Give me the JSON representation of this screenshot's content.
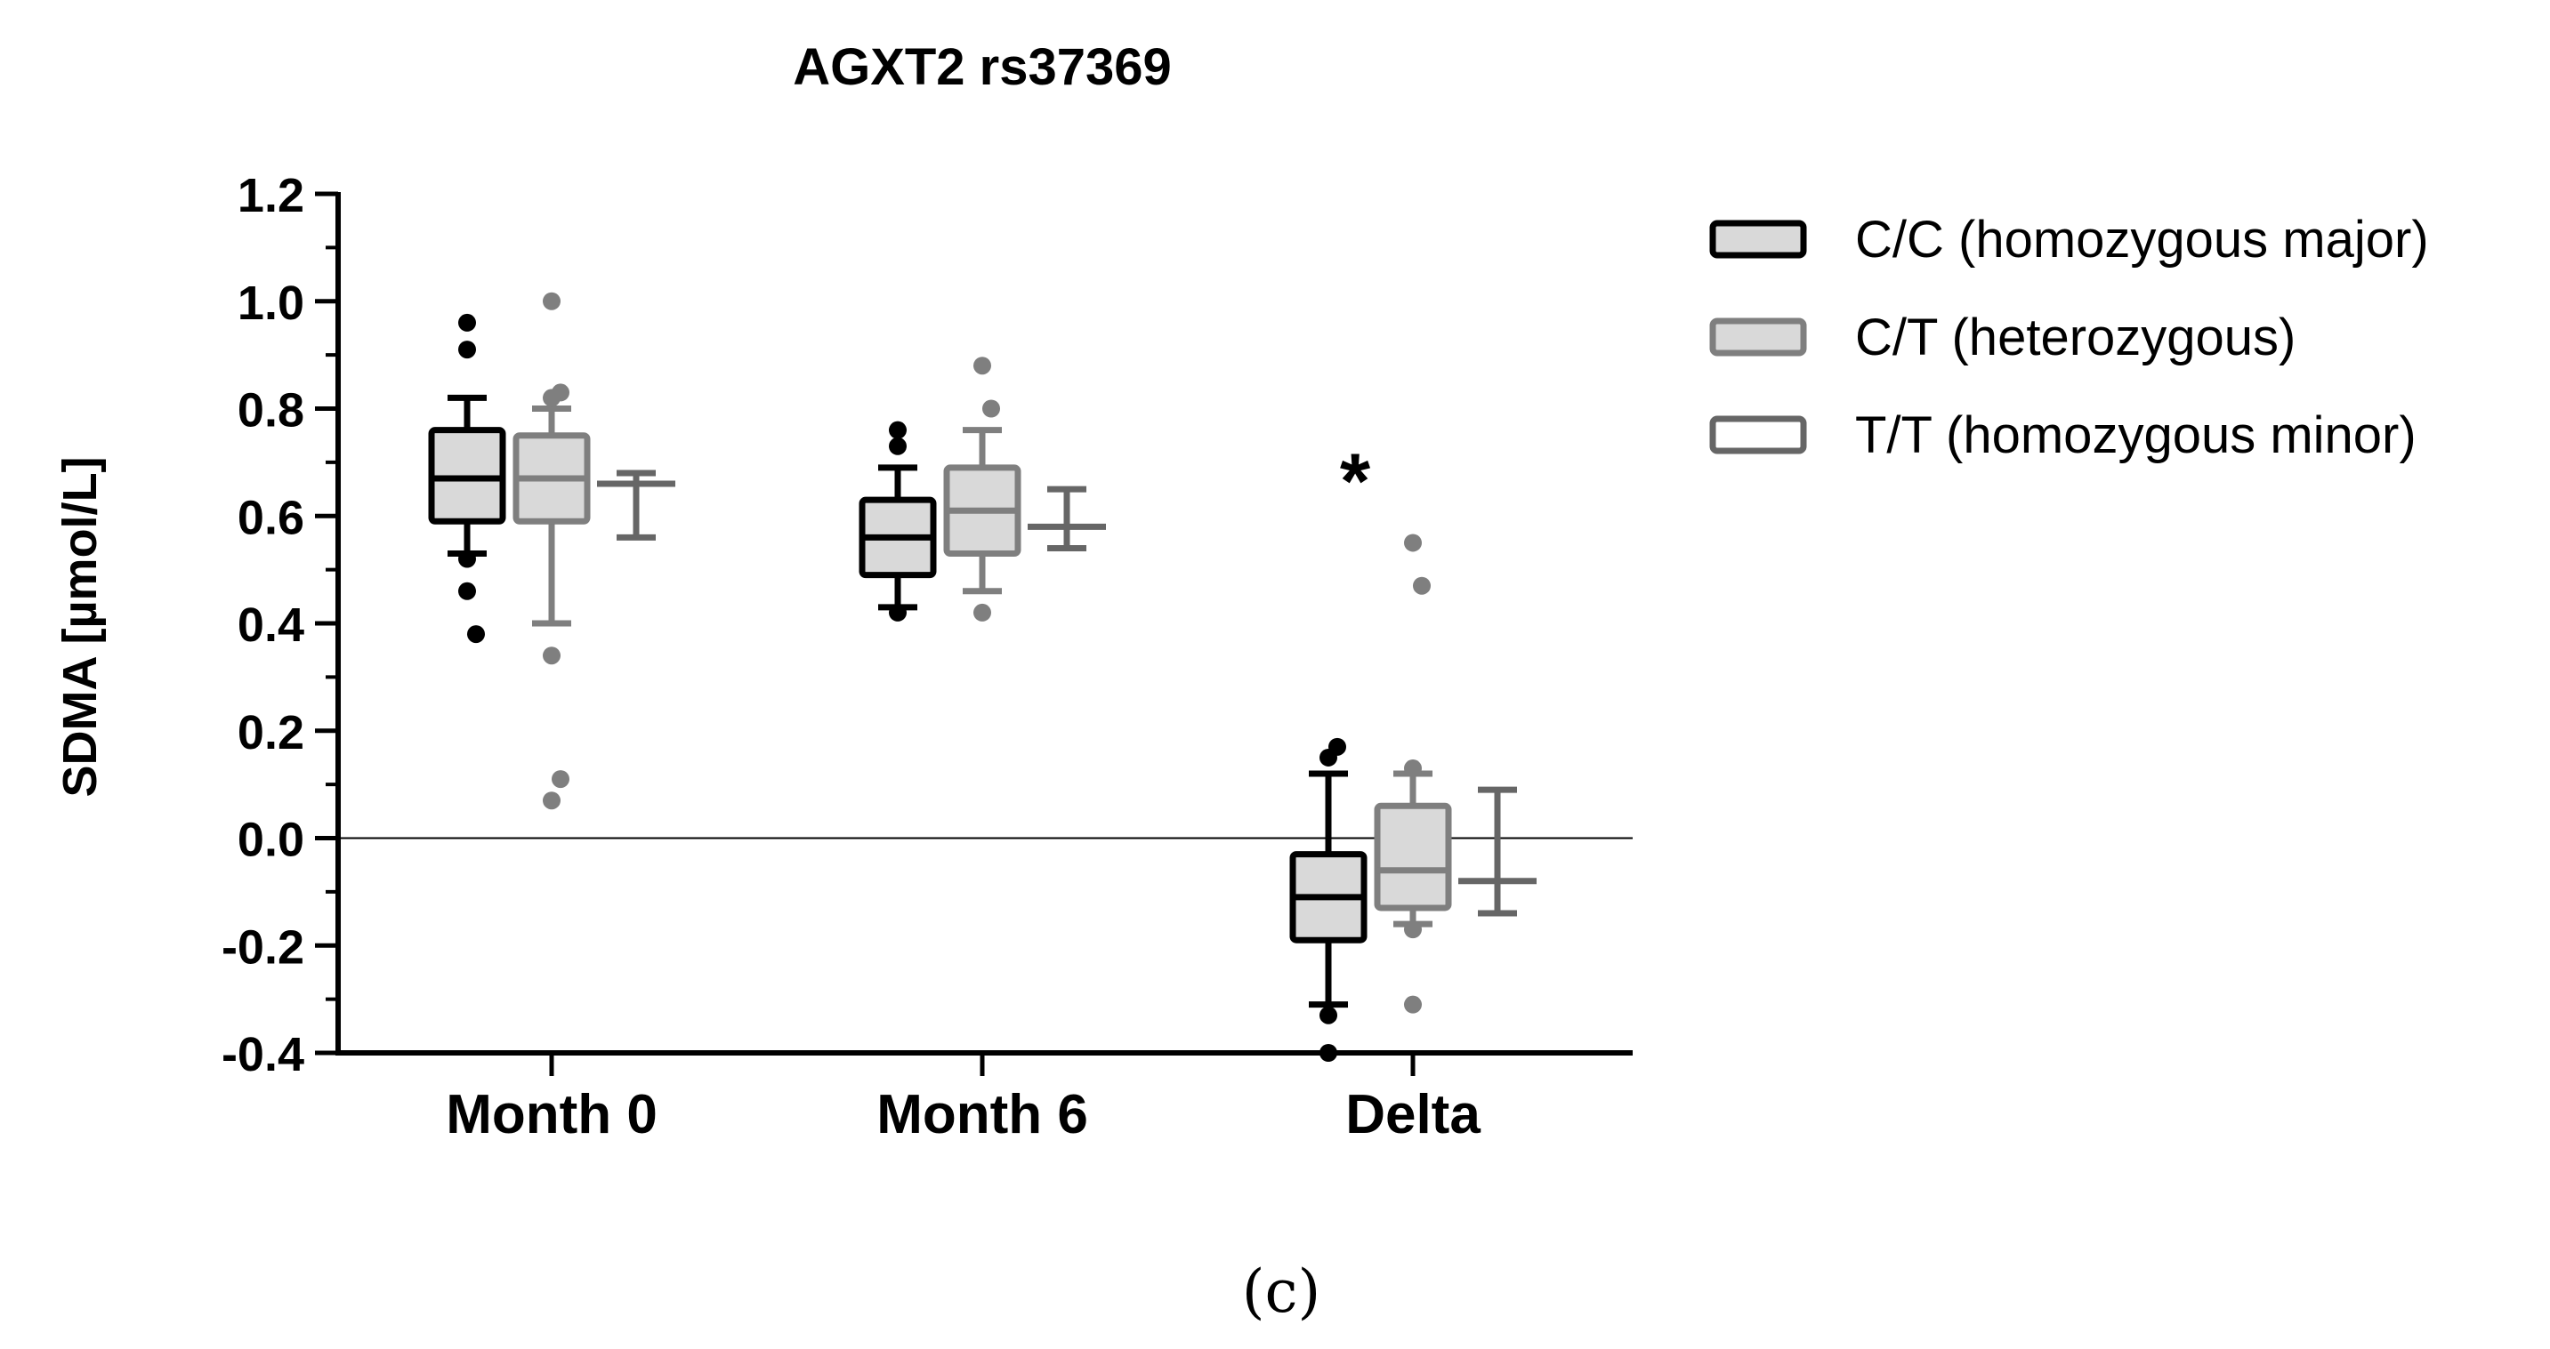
{
  "chart_data": {
    "type": "box",
    "title": "AGXT2 rs37369",
    "ylabel": "SDMA [µmol/L]",
    "xlabel": "",
    "ylim": [
      -0.4,
      1.2
    ],
    "yticks": [
      "1.2",
      "1.0",
      "0.8",
      "0.6",
      "0.4",
      "0.2",
      "0.0",
      "-0.2",
      "-0.4"
    ],
    "ytick_values": [
      1.2,
      1.0,
      0.8,
      0.6,
      0.4,
      0.2,
      0.0,
      -0.2,
      -0.4
    ],
    "categories": [
      "Month 0",
      "Month 6",
      "Delta"
    ],
    "reference_line": 0.0,
    "legend_position": "right",
    "annotation": {
      "text": "*",
      "category": "Delta",
      "y": 0.69
    },
    "series": [
      {
        "name": "C/C (homozygous major)",
        "stroke": "#000000",
        "fill": "#d9d9d9",
        "boxes": [
          {
            "whisker_low": 0.53,
            "q1": 0.59,
            "median": 0.67,
            "q3": 0.76,
            "whisker_high": 0.82,
            "outliers": [
              0.96,
              0.91,
              0.52,
              0.46,
              0.38
            ]
          },
          {
            "whisker_low": 0.43,
            "q1": 0.49,
            "median": 0.56,
            "q3": 0.63,
            "whisker_high": 0.69,
            "outliers": [
              0.76,
              0.73,
              0.42
            ]
          },
          {
            "whisker_low": -0.31,
            "q1": -0.19,
            "median": -0.11,
            "q3": -0.03,
            "whisker_high": 0.12,
            "outliers": [
              0.17,
              0.15,
              -0.33,
              -0.4
            ]
          }
        ]
      },
      {
        "name": "C/T (heterozygous)",
        "stroke": "#7f7f7f",
        "fill": "#d9d9d9",
        "boxes": [
          {
            "whisker_low": 0.4,
            "q1": 0.59,
            "median": 0.67,
            "q3": 0.75,
            "whisker_high": 0.8,
            "outliers": [
              1.0,
              0.83,
              0.82,
              0.34,
              0.11,
              0.07
            ]
          },
          {
            "whisker_low": 0.46,
            "q1": 0.53,
            "median": 0.61,
            "q3": 0.69,
            "whisker_high": 0.76,
            "outliers": [
              0.88,
              0.8,
              0.42
            ]
          },
          {
            "whisker_low": -0.16,
            "q1": -0.13,
            "median": -0.06,
            "q3": 0.06,
            "whisker_high": 0.12,
            "outliers": [
              0.55,
              0.47,
              0.13,
              -0.17,
              -0.31
            ]
          }
        ]
      },
      {
        "name": "T/T (homozygous minor)",
        "stroke": "#666666",
        "fill": "#ffffff",
        "boxes": [
          {
            "whisker_low": 0.56,
            "median": 0.66,
            "whisker_high": 0.68
          },
          {
            "whisker_low": 0.54,
            "median": 0.58,
            "whisker_high": 0.65
          },
          {
            "whisker_low": -0.14,
            "median": -0.08,
            "whisker_high": 0.09
          }
        ]
      }
    ]
  },
  "caption": "(c)"
}
